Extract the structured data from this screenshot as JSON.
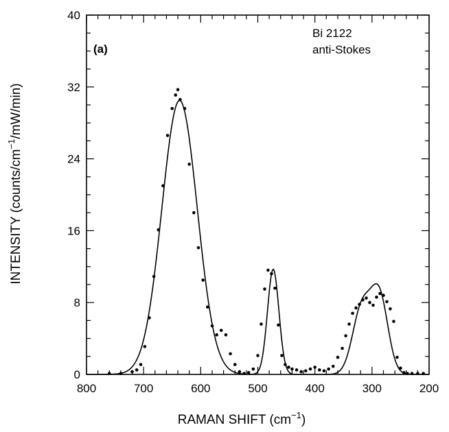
{
  "chart_data": {
    "type": "scatter",
    "panel_label": "(a)",
    "annotation_lines": [
      "Bi 2122",
      "anti-Stokes"
    ],
    "xlabel": {
      "main": "RAMAN SHIFT (cm",
      "sup": "−1",
      "tail": ")"
    },
    "ylabel": {
      "main": "INTENSITY (counts/cm",
      "sup": "−1",
      "tail": "/mW/min)"
    },
    "xlim": [
      800,
      200
    ],
    "ylim": [
      0,
      40
    ],
    "x_reversed": true,
    "x_ticks": [
      800,
      700,
      600,
      500,
      400,
      300,
      200
    ],
    "y_ticks": [
      0,
      8,
      16,
      24,
      32,
      40
    ],
    "grid": false,
    "series": [
      {
        "kind": "points",
        "x": [
          760,
          740,
          720,
          712,
          705,
          698,
          690,
          682,
          674,
          666,
          658,
          650,
          644,
          640,
          636,
          628,
          620,
          612,
          604,
          596,
          588,
          580,
          572,
          564,
          556,
          548,
          540,
          532,
          524,
          516,
          508,
          500,
          494,
          488,
          482,
          476,
          470,
          464,
          458,
          452,
          446,
          440,
          432,
          424,
          416,
          408,
          400,
          392,
          384,
          376,
          368,
          360,
          352,
          346,
          340,
          334,
          328,
          322,
          316,
          310,
          304,
          298,
          292,
          286,
          280,
          274,
          268,
          262,
          256,
          250,
          244,
          238,
          230,
          220,
          210
        ],
        "y": [
          0.1,
          0.1,
          0.3,
          0.5,
          1.1,
          3.1,
          6.3,
          10.9,
          16.1,
          21.0,
          26.6,
          29.6,
          31.1,
          31.7,
          30.6,
          29.6,
          23.4,
          18.0,
          14.1,
          10.5,
          7.5,
          5.4,
          4.4,
          4.9,
          4.4,
          2.3,
          1.1,
          0.3,
          0.1,
          0.2,
          0.6,
          2.1,
          5.6,
          9.5,
          11.6,
          11.2,
          9.6,
          5.5,
          2.1,
          1.1,
          0.8,
          0.6,
          0.5,
          0.3,
          0.4,
          0.6,
          0.8,
          0.5,
          0.4,
          0.6,
          0.9,
          1.9,
          2.9,
          4.3,
          5.6,
          6.8,
          7.4,
          7.8,
          8.3,
          8.5,
          8.0,
          7.7,
          8.6,
          9.0,
          8.8,
          8.1,
          7.3,
          5.9,
          1.9,
          0.7,
          0.2,
          0.1,
          0.1,
          0.1,
          0.1
        ]
      },
      {
        "kind": "fit-line",
        "components": [
          {
            "center": 637,
            "amplitude": 30.5,
            "sigma": 31
          },
          {
            "center": 473,
            "amplitude": 11.7,
            "sigma": 10
          },
          {
            "center": 318,
            "amplitude": 7.3,
            "sigma": 16
          },
          {
            "center": 287,
            "amplitude": 8.6,
            "sigma": 15
          }
        ]
      }
    ]
  }
}
